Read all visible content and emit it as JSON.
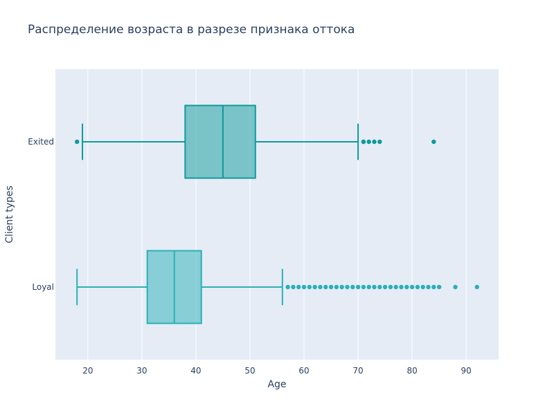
{
  "chart_data": {
    "type": "box",
    "orientation": "horizontal",
    "title": "Распределение возраста в разрезе признака оттока",
    "xlabel": "Age",
    "ylabel": "Client types",
    "xlim": [
      14,
      96
    ],
    "x_ticks": [
      20,
      30,
      40,
      50,
      60,
      70,
      80,
      90
    ],
    "grid": true,
    "legend": "none",
    "colors": {
      "plot_bg": "#e5ecf6",
      "grid": "#ffffff",
      "text": "#2a3f5f",
      "exited": "#0f9a9a",
      "loyal": "#2ab0b5"
    },
    "series": [
      {
        "category": "Exited",
        "min": 19,
        "q1": 38,
        "median": 45,
        "q3": 51,
        "max": 70,
        "outliers": [
          18,
          71,
          71,
          72,
          73,
          74,
          84
        ]
      },
      {
        "category": "Loyal",
        "min": 18,
        "q1": 31,
        "median": 36,
        "q3": 41,
        "max": 56,
        "outliers": [
          57,
          58,
          59,
          60,
          61,
          62,
          63,
          64,
          65,
          66,
          67,
          68,
          69,
          70,
          71,
          72,
          73,
          74,
          75,
          76,
          77,
          78,
          79,
          80,
          81,
          82,
          83,
          84,
          85,
          88,
          92
        ]
      }
    ]
  }
}
